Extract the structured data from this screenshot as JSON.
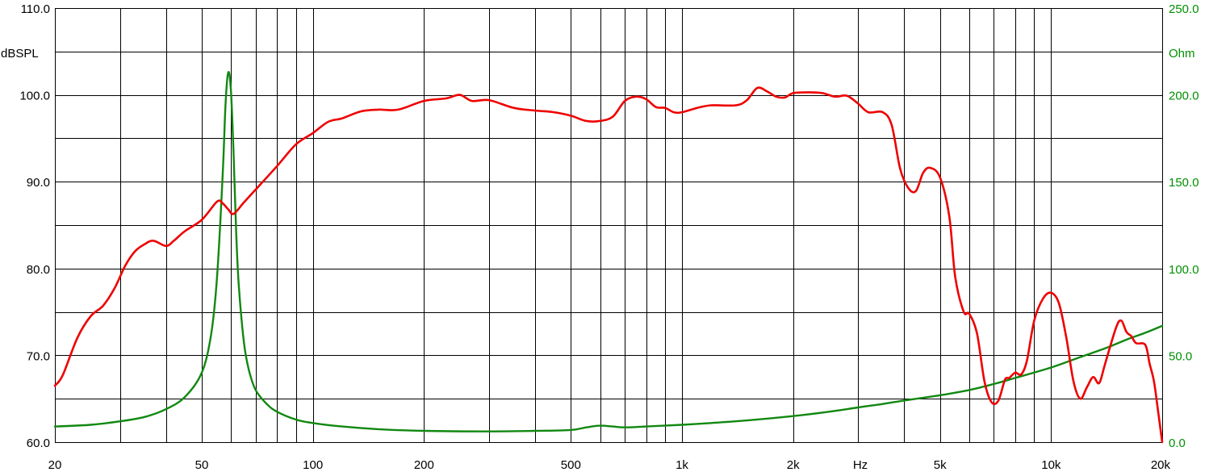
{
  "chart_data": {
    "type": "line",
    "x_scale": "log",
    "xlim": [
      20,
      20000
    ],
    "xlabel": "Hz",
    "x_ticks": [
      {
        "value": 20,
        "label": "20"
      },
      {
        "value": 50,
        "label": "50"
      },
      {
        "value": 100,
        "label": "100"
      },
      {
        "value": 200,
        "label": "200"
      },
      {
        "value": 500,
        "label": "500"
      },
      {
        "value": 1000,
        "label": "1k"
      },
      {
        "value": 2000,
        "label": "2k"
      },
      {
        "value": 5000,
        "label": "5k"
      },
      {
        "value": 10000,
        "label": "10k"
      },
      {
        "value": 20000,
        "label": "20k"
      }
    ],
    "x_gridlines": [
      30,
      40,
      50,
      60,
      70,
      80,
      90,
      100,
      200,
      300,
      400,
      500,
      600,
      700,
      800,
      900,
      1000,
      2000,
      3000,
      4000,
      5000,
      6000,
      7000,
      8000,
      9000,
      10000
    ],
    "y_left": {
      "label": "dBSPL",
      "ylim": [
        60,
        110
      ],
      "ticks": [
        {
          "value": 110,
          "label": "110.0"
        },
        {
          "value": 100,
          "label": "100.0"
        },
        {
          "value": 90,
          "label": "90.0"
        },
        {
          "value": 80,
          "label": "80.0"
        },
        {
          "value": 70,
          "label": "70.0"
        },
        {
          "value": 60,
          "label": "60.0"
        }
      ]
    },
    "y_right": {
      "label": "Ohm",
      "ylim": [
        0,
        250
      ],
      "ticks": [
        {
          "value": 250,
          "label": "250.0"
        },
        {
          "value": 200,
          "label": "200.0"
        },
        {
          "value": 150,
          "label": "150.0"
        },
        {
          "value": 100,
          "label": "100.0"
        },
        {
          "value": 50,
          "label": "50.0"
        },
        {
          "value": 0,
          "label": "0.0"
        }
      ]
    },
    "h_gridlines": [
      105,
      100,
      95,
      90,
      85,
      80,
      75,
      70,
      65
    ],
    "grid": true,
    "series": [
      {
        "axis": "left",
        "color": "#ee0000",
        "x": [
          20,
          21,
          23,
          25,
          27,
          29,
          31,
          33,
          35,
          37,
          40,
          42,
          45,
          50,
          55,
          57,
          59,
          61,
          65,
          70,
          80,
          90,
          100,
          110,
          120,
          135,
          150,
          170,
          200,
          230,
          250,
          270,
          300,
          350,
          400,
          450,
          500,
          550,
          600,
          650,
          700,
          750,
          800,
          850,
          900,
          950,
          1000,
          1100,
          1200,
          1400,
          1500,
          1600,
          1700,
          1800,
          1900,
          2000,
          2200,
          2400,
          2600,
          2800,
          3000,
          3200,
          3500,
          3700,
          3900,
          4100,
          4300,
          4500,
          4700,
          5000,
          5300,
          5500,
          5800,
          6000,
          6300,
          6600,
          6900,
          7200,
          7500,
          7700,
          8000,
          8300,
          8600,
          9000,
          9500,
          10000,
          10500,
          11000,
          11500,
          12000,
          12500,
          13000,
          13500,
          14000,
          15000,
          15500,
          16000,
          16500,
          17000,
          18000,
          18500,
          19000,
          19500,
          20000
        ],
        "y": [
          66.5,
          67.7,
          72.0,
          74.5,
          75.7,
          77.7,
          80.3,
          82.0,
          82.8,
          83.2,
          82.6,
          83.2,
          84.3,
          85.6,
          87.7,
          87.5,
          86.8,
          86.3,
          87.6,
          89.1,
          91.8,
          94.3,
          95.6,
          96.9,
          97.3,
          98.1,
          98.3,
          98.3,
          99.3,
          99.6,
          100.0,
          99.3,
          99.4,
          98.5,
          98.2,
          98.0,
          97.6,
          97.0,
          97.0,
          97.5,
          99.3,
          99.8,
          99.5,
          98.6,
          98.5,
          98.0,
          98.0,
          98.5,
          98.8,
          98.8,
          99.4,
          100.8,
          100.4,
          99.8,
          99.7,
          100.2,
          100.3,
          100.2,
          99.8,
          99.9,
          99.0,
          98.0,
          98.0,
          96.5,
          91.5,
          89.3,
          88.9,
          91.0,
          91.6,
          90.5,
          86.0,
          79.0,
          75.0,
          74.8,
          72.5,
          67.0,
          64.6,
          64.8,
          67.2,
          67.4,
          68.0,
          67.8,
          69.4,
          74.0,
          76.5,
          77.2,
          76.0,
          72.0,
          67.0,
          65.0,
          66.3,
          67.5,
          66.8,
          69.0,
          73.2,
          74.0,
          72.7,
          72.2,
          71.4,
          71.2,
          69.0,
          67.0,
          63.5,
          60.0
        ]
      },
      {
        "axis": "right",
        "color": "#118811",
        "x": [
          20,
          25,
          30,
          35,
          40,
          45,
          50,
          53,
          55,
          57,
          58,
          59,
          60,
          61,
          62,
          63,
          65,
          67,
          70,
          75,
          80,
          90,
          100,
          120,
          150,
          200,
          300,
          400,
          500,
          550,
          600,
          650,
          700,
          800,
          1000,
          1200,
          1500,
          2000,
          2500,
          3000,
          3500,
          4000,
          5000,
          6000,
          7000,
          8000,
          10000,
          12000,
          14000,
          16000,
          18000,
          20000
        ],
        "y": [
          9.0,
          10.0,
          12.0,
          14.5,
          19.0,
          26.0,
          40.0,
          62.0,
          95.0,
          155.0,
          195.0,
          213.0,
          202.0,
          165.0,
          120.0,
          90.0,
          58.0,
          42.0,
          30.0,
          22.0,
          17.5,
          13.0,
          11.0,
          9.0,
          7.5,
          6.5,
          6.2,
          6.5,
          7.0,
          8.5,
          9.5,
          9.0,
          8.5,
          9.0,
          10.0,
          11.0,
          12.5,
          15.0,
          17.5,
          20.0,
          22.0,
          24.0,
          27.0,
          30.0,
          33.5,
          37.0,
          43.0,
          49.0,
          54.0,
          59.0,
          63.0,
          67.0
        ]
      }
    ]
  }
}
